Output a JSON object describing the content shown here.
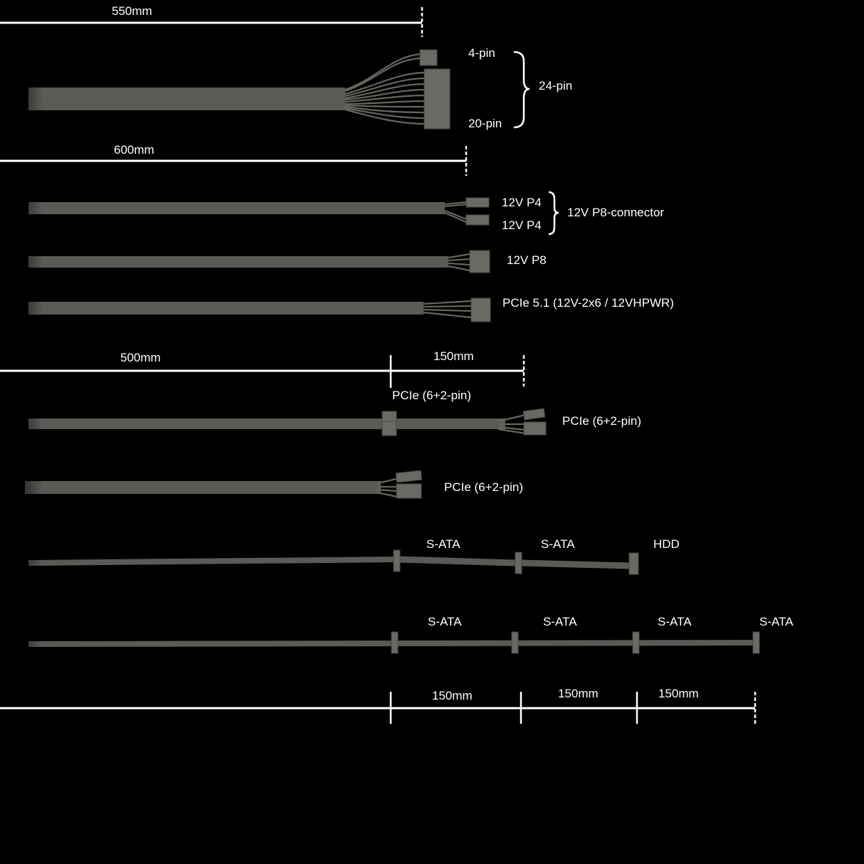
{
  "atx_cable": {
    "length": "550mm",
    "label_4pin": "4-pin",
    "label_20pin": "20-pin",
    "label_24pin": "24-pin"
  },
  "cpu_cables": {
    "length": "600mm",
    "p4_top": "12V P4",
    "p4_bottom": "12V P4",
    "p8_connector": "12V P8-connector",
    "p8": "12V P8",
    "pcie51": "PCIe 5.1 (12V-2x6 / 12VHPWR)"
  },
  "pcie_cables": {
    "length_main": "500mm",
    "length_ext": "150mm",
    "mid_label": "PCIe (6+2-pin)",
    "end_label": "PCIe (6+2-pin)",
    "single_label": "PCIe (6+2-pin)"
  },
  "sata_cable_1": {
    "labels": [
      "S-ATA",
      "S-ATA",
      "HDD"
    ]
  },
  "sata_cable_2": {
    "labels": [
      "S-ATA",
      "S-ATA",
      "S-ATA",
      "S-ATA"
    ]
  },
  "bottom_dimension": {
    "segments": [
      "150mm",
      "150mm",
      "150mm"
    ]
  },
  "colors": {
    "background": "#000000",
    "cable": "#5b5a57",
    "text": "#ffffff"
  }
}
